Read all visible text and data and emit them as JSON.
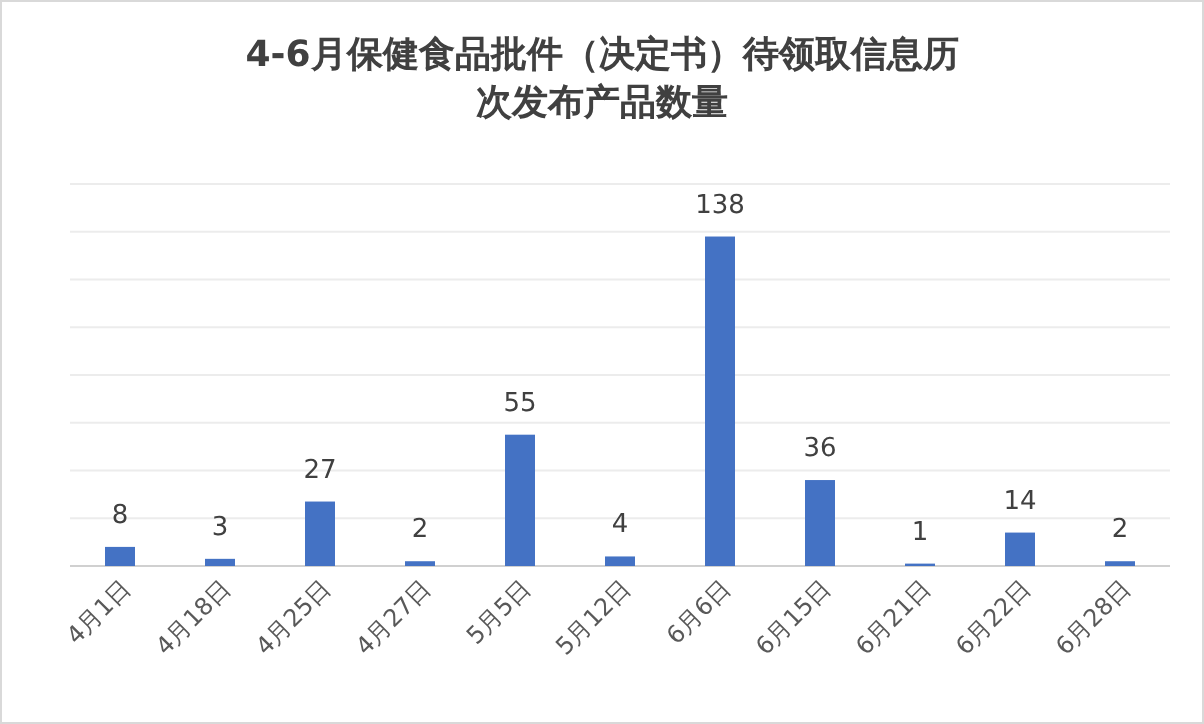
{
  "chart_data": {
    "type": "bar",
    "title": "4-6月保健食品批件（决定书）待领取信息历次发布产品数量",
    "categories": [
      "4月1日",
      "4月18日",
      "4月25日",
      "4月27日",
      "5月5日",
      "5月12日",
      "6月6日",
      "6月15日",
      "6月21日",
      "6月22日",
      "6月28日"
    ],
    "values": [
      8,
      3,
      27,
      2,
      55,
      4,
      138,
      36,
      1,
      14,
      2
    ],
    "color": "#4472c4",
    "ylim": [
      0,
      160
    ],
    "yticks": [
      {
        "value": 0,
        "label": null
      },
      {
        "value": 20,
        "label": null
      },
      {
        "value": 40,
        "label": null
      },
      {
        "value": 60,
        "label": null
      },
      {
        "value": 80,
        "label": null
      },
      {
        "value": 100,
        "label": null
      },
      {
        "value": 120,
        "label": null
      },
      {
        "value": 140,
        "label": null
      },
      {
        "value": 160,
        "label": null
      }
    ],
    "grid": "y",
    "tick_labels": "x",
    "data_labels": true
  }
}
